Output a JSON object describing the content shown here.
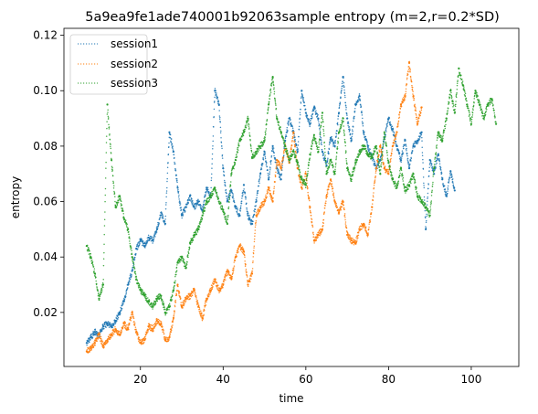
{
  "chart_data": {
    "type": "scatter",
    "title": "5a9ea9fe1ade740001b92063sample entropy (m=2,r=0.2*SD)",
    "xlabel": "time",
    "ylabel": "entropy",
    "xlim": [
      1.5,
      111.5
    ],
    "ylim": [
      0.0005,
      0.1225
    ],
    "xticks": [
      20,
      40,
      60,
      80,
      100
    ],
    "yticks": [
      0.02,
      0.04,
      0.06,
      0.08,
      0.1,
      0.12
    ],
    "xtick_labels": [
      "20",
      "40",
      "60",
      "80",
      "100"
    ],
    "ytick_labels": [
      "0.02",
      "0.04",
      "0.06",
      "0.08",
      "0.10",
      "0.12"
    ],
    "grid": false,
    "legend_position": "top-left",
    "series": [
      {
        "name": "session1",
        "color": "#1f77b4",
        "x": [
          7,
          8,
          9,
          10,
          11,
          12,
          13,
          14,
          15,
          16,
          17,
          18,
          19,
          20,
          21,
          22,
          23,
          24,
          25,
          26,
          27,
          28,
          29,
          30,
          31,
          32,
          33,
          34,
          35,
          36,
          37,
          38,
          39,
          40,
          41,
          42,
          43,
          44,
          45,
          46,
          47,
          48,
          49,
          50,
          51,
          52,
          53,
          54,
          55,
          56,
          57,
          58,
          59,
          60,
          61,
          62,
          63,
          64,
          65,
          66,
          67,
          68,
          69,
          70,
          71,
          72,
          73,
          74,
          75,
          76,
          77,
          78,
          79,
          80,
          81,
          82,
          83,
          84,
          85,
          86,
          87,
          88,
          89,
          90,
          91,
          92,
          93,
          94,
          95,
          96
        ],
        "y": [
          0.009,
          0.011,
          0.013,
          0.012,
          0.015,
          0.016,
          0.015,
          0.017,
          0.02,
          0.024,
          0.03,
          0.035,
          0.043,
          0.046,
          0.044,
          0.047,
          0.046,
          0.05,
          0.056,
          0.052,
          0.085,
          0.078,
          0.065,
          0.055,
          0.058,
          0.062,
          0.058,
          0.06,
          0.057,
          0.065,
          0.062,
          0.1,
          0.095,
          0.072,
          0.06,
          0.064,
          0.058,
          0.055,
          0.066,
          0.055,
          0.052,
          0.06,
          0.07,
          0.078,
          0.068,
          0.08,
          0.072,
          0.068,
          0.082,
          0.09,
          0.085,
          0.078,
          0.1,
          0.092,
          0.088,
          0.094,
          0.09,
          0.078,
          0.073,
          0.083,
          0.08,
          0.092,
          0.105,
          0.09,
          0.082,
          0.095,
          0.098,
          0.085,
          0.08,
          0.076,
          0.072,
          0.075,
          0.083,
          0.09,
          0.086,
          0.08,
          0.075,
          0.082,
          0.072,
          0.08,
          0.082,
          0.085,
          0.05,
          0.075,
          0.07,
          0.077,
          0.068,
          0.062,
          0.071,
          0.064
        ]
      },
      {
        "name": "session2",
        "color": "#ff7f0e",
        "x": [
          7,
          8,
          9,
          10,
          11,
          12,
          13,
          14,
          15,
          16,
          17,
          18,
          19,
          20,
          21,
          22,
          23,
          24,
          25,
          26,
          27,
          28,
          29,
          30,
          31,
          32,
          33,
          34,
          35,
          36,
          37,
          38,
          39,
          40,
          41,
          42,
          43,
          44,
          45,
          46,
          47,
          48,
          49,
          50,
          51,
          52,
          53,
          54,
          55,
          56,
          57,
          58,
          59,
          60,
          61,
          62,
          63,
          64,
          65,
          66,
          67,
          68,
          69,
          70,
          71,
          72,
          73,
          74,
          75,
          76,
          77,
          78,
          79,
          80,
          81,
          82,
          83,
          84,
          85,
          86,
          87,
          88
        ],
        "y": [
          0.006,
          0.007,
          0.009,
          0.012,
          0.008,
          0.01,
          0.012,
          0.014,
          0.012,
          0.016,
          0.014,
          0.02,
          0.013,
          0.009,
          0.01,
          0.015,
          0.014,
          0.017,
          0.016,
          0.01,
          0.011,
          0.018,
          0.03,
          0.022,
          0.025,
          0.026,
          0.028,
          0.022,
          0.018,
          0.025,
          0.028,
          0.032,
          0.028,
          0.03,
          0.035,
          0.032,
          0.04,
          0.044,
          0.042,
          0.03,
          0.034,
          0.055,
          0.058,
          0.06,
          0.065,
          0.06,
          0.075,
          0.072,
          0.08,
          0.074,
          0.085,
          0.072,
          0.065,
          0.07,
          0.058,
          0.046,
          0.048,
          0.05,
          0.062,
          0.068,
          0.06,
          0.056,
          0.06,
          0.048,
          0.046,
          0.045,
          0.05,
          0.052,
          0.048,
          0.058,
          0.072,
          0.08,
          0.072,
          0.07,
          0.08,
          0.085,
          0.095,
          0.098,
          0.11,
          0.098,
          0.088,
          0.094
        ]
      },
      {
        "name": "session3",
        "color": "#2ca02c",
        "x": [
          7,
          8,
          9,
          10,
          11,
          12,
          13,
          14,
          15,
          16,
          17,
          18,
          19,
          20,
          21,
          22,
          23,
          24,
          25,
          26,
          27,
          28,
          29,
          30,
          31,
          32,
          33,
          34,
          35,
          36,
          37,
          38,
          39,
          40,
          41,
          42,
          43,
          44,
          45,
          46,
          47,
          48,
          49,
          50,
          51,
          52,
          53,
          54,
          55,
          56,
          57,
          58,
          59,
          60,
          61,
          62,
          63,
          64,
          65,
          66,
          67,
          68,
          69,
          70,
          71,
          72,
          73,
          74,
          75,
          76,
          77,
          78,
          79,
          80,
          81,
          82,
          83,
          84,
          85,
          86,
          87,
          88,
          89,
          90,
          91,
          92,
          93,
          94,
          95,
          96,
          97,
          98,
          99,
          100,
          101,
          102,
          103,
          104,
          105,
          106
        ],
        "y": [
          0.044,
          0.04,
          0.034,
          0.025,
          0.03,
          0.095,
          0.075,
          0.058,
          0.062,
          0.054,
          0.05,
          0.04,
          0.032,
          0.028,
          0.026,
          0.024,
          0.022,
          0.025,
          0.026,
          0.02,
          0.022,
          0.028,
          0.038,
          0.04,
          0.036,
          0.045,
          0.048,
          0.05,
          0.055,
          0.06,
          0.062,
          0.065,
          0.06,
          0.057,
          0.052,
          0.07,
          0.075,
          0.082,
          0.085,
          0.09,
          0.076,
          0.078,
          0.08,
          0.082,
          0.095,
          0.105,
          0.09,
          0.085,
          0.08,
          0.075,
          0.078,
          0.074,
          0.068,
          0.066,
          0.077,
          0.084,
          0.078,
          0.092,
          0.07,
          0.075,
          0.07,
          0.085,
          0.09,
          0.072,
          0.068,
          0.074,
          0.078,
          0.08,
          0.077,
          0.076,
          0.08,
          0.07,
          0.085,
          0.074,
          0.068,
          0.065,
          0.072,
          0.064,
          0.066,
          0.07,
          0.062,
          0.06,
          0.058,
          0.055,
          0.072,
          0.085,
          0.082,
          0.09,
          0.1,
          0.092,
          0.108,
          0.102,
          0.095,
          0.088,
          0.1,
          0.095,
          0.09,
          0.095,
          0.097,
          0.088
        ]
      }
    ]
  }
}
